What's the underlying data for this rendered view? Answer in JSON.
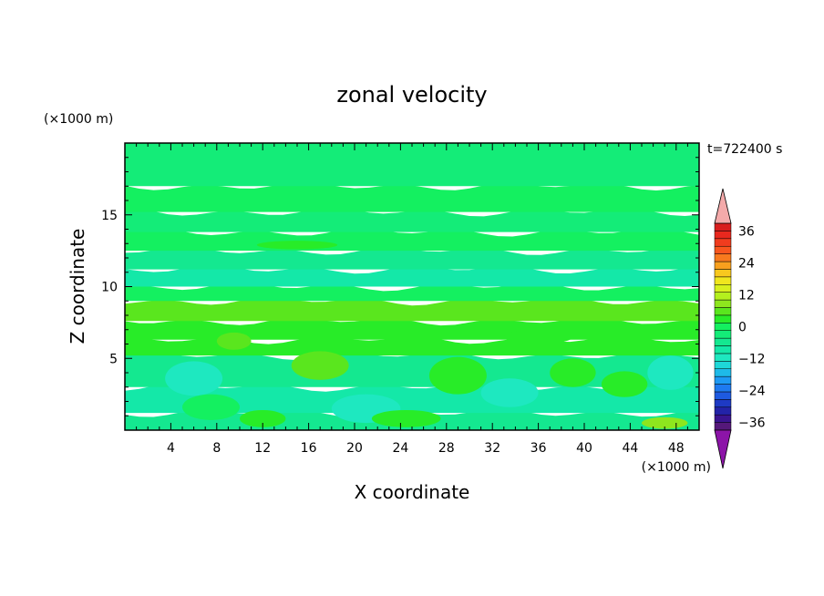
{
  "chart_data": {
    "type": "heatmap",
    "title": "zonal velocity",
    "xlabel": "X coordinate",
    "ylabel": "Z coordinate",
    "x_unit": "(×1000 m)",
    "y_unit": "(×1000 m)",
    "time_label": "t=722400 s",
    "xlim": [
      0,
      50
    ],
    "ylim": [
      0,
      20
    ],
    "x_ticks": [
      4,
      8,
      12,
      16,
      20,
      24,
      28,
      32,
      36,
      40,
      44,
      48
    ],
    "y_ticks": [
      5,
      10,
      15
    ],
    "x_tick_labels": [
      "4",
      "8",
      "12",
      "16",
      "20",
      "24",
      "28",
      "32",
      "36",
      "40",
      "44",
      "48"
    ],
    "y_tick_labels": [
      "5",
      "10",
      "15"
    ],
    "colorbar": {
      "levels": [
        -42,
        -39,
        -36,
        -33,
        -30,
        -27,
        -24,
        -21,
        -18,
        -15,
        -12,
        -9,
        -6,
        -3,
        0,
        3,
        6,
        9,
        12,
        15,
        18,
        21,
        24,
        27,
        30,
        33,
        36,
        39,
        42
      ],
      "tick_values": [
        36,
        24,
        12,
        0,
        -12,
        -24,
        -36
      ],
      "tick_labels": [
        "36",
        "24",
        "12",
        "0",
        "−12",
        "−24",
        "−36"
      ],
      "colors": [
        "#55187a",
        "#3a1490",
        "#2323a8",
        "#1e3ac4",
        "#1e5ae0",
        "#1e7af0",
        "#1e9af4",
        "#1ebae8",
        "#1ed8d8",
        "#1ee8c0",
        "#14e8a8",
        "#14e890",
        "#14ec78",
        "#14f060",
        "#28ec28",
        "#5ae61e",
        "#8ee61e",
        "#b4f01e",
        "#d8f01e",
        "#f0e61e",
        "#f8c81e",
        "#f8a01e",
        "#f87a1e",
        "#f8561e",
        "#f03c1e",
        "#e8281e",
        "#d81e1e"
      ],
      "under_color": "#8c14a8",
      "over_color": "#f4aaaa"
    },
    "bands": [
      {
        "z_from": 0.0,
        "z_to": 1.2,
        "value": -5
      },
      {
        "z_from": 1.2,
        "z_to": 3.0,
        "value": -8
      },
      {
        "z_from": 3.0,
        "z_to": 5.2,
        "value": -6
      },
      {
        "z_from": 5.2,
        "z_to": 6.3,
        "value": 3
      },
      {
        "z_from": 6.3,
        "z_to": 7.6,
        "value": 5
      },
      {
        "z_from": 7.6,
        "z_to": 9.0,
        "value": 7
      },
      {
        "z_from": 9.0,
        "z_to": 10.0,
        "value": 1
      },
      {
        "z_from": 10.0,
        "z_to": 11.2,
        "value": -7
      },
      {
        "z_from": 11.2,
        "z_to": 12.5,
        "value": -4
      },
      {
        "z_from": 12.5,
        "z_to": 13.8,
        "value": 1
      },
      {
        "z_from": 13.8,
        "z_to": 15.2,
        "value": -3
      },
      {
        "z_from": 15.2,
        "z_to": 17.0,
        "value": 1
      },
      {
        "z_from": 17.0,
        "z_to": 20.0,
        "value": -3
      }
    ],
    "patches": [
      {
        "x": 6,
        "z": 3.6,
        "rx": 2.5,
        "rz": 1.2,
        "value": -10
      },
      {
        "x": 7.5,
        "z": 1.6,
        "rx": 2.5,
        "rz": 0.9,
        "value": 2
      },
      {
        "x": 9.5,
        "z": 6.2,
        "rx": 1.5,
        "rz": 0.6,
        "value": 8
      },
      {
        "x": 12,
        "z": 0.8,
        "rx": 2.0,
        "rz": 0.6,
        "value": 4
      },
      {
        "x": 17,
        "z": 4.5,
        "rx": 2.5,
        "rz": 1.0,
        "value": 6
      },
      {
        "x": 21,
        "z": 1.5,
        "rx": 3.0,
        "rz": 1.0,
        "value": -10
      },
      {
        "x": 24.5,
        "z": 0.8,
        "rx": 3.0,
        "rz": 0.6,
        "value": 5
      },
      {
        "x": 29,
        "z": 3.8,
        "rx": 2.5,
        "rz": 1.3,
        "value": 4
      },
      {
        "x": 33.5,
        "z": 2.6,
        "rx": 2.5,
        "rz": 1.0,
        "value": -10
      },
      {
        "x": 39,
        "z": 4.0,
        "rx": 2.0,
        "rz": 1.0,
        "value": 4
      },
      {
        "x": 43.5,
        "z": 3.2,
        "rx": 2.0,
        "rz": 0.9,
        "value": 5
      },
      {
        "x": 47.5,
        "z": 4.0,
        "rx": 2.0,
        "rz": 1.2,
        "value": -10
      },
      {
        "x": 47,
        "z": 0.5,
        "rx": 2.0,
        "rz": 0.4,
        "value": 9
      },
      {
        "x": 15,
        "z": 12.9,
        "rx": 3.5,
        "rz": 0.3,
        "value": 3
      },
      {
        "x": 36,
        "z": 6.5,
        "rx": 3.0,
        "rz": 0.5,
        "value": 3
      }
    ]
  }
}
